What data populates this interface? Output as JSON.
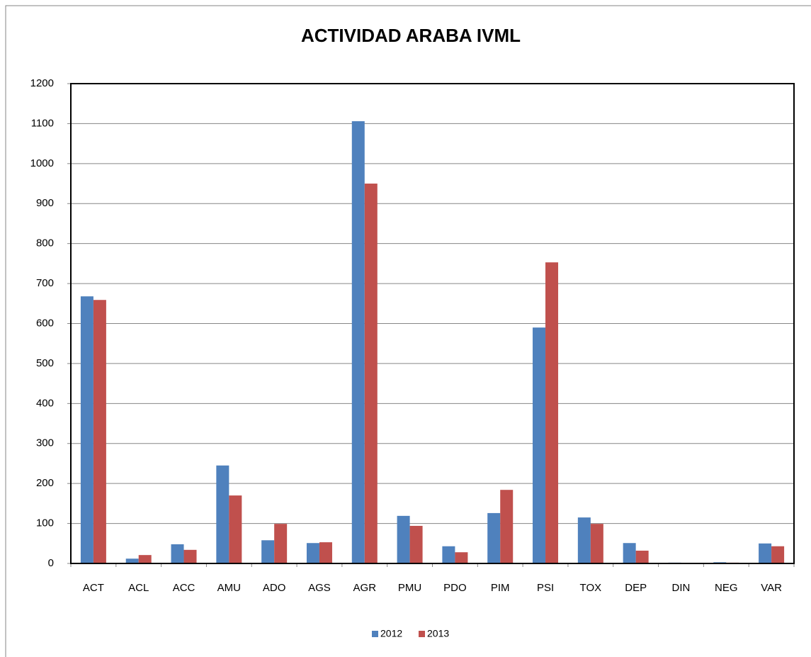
{
  "chart_data": {
    "type": "bar",
    "title": "ACTIVIDAD ARABA IVML",
    "categories": [
      "ACT",
      "ACL",
      "ACC",
      "AMU",
      "ADO",
      "AGS",
      "AGR",
      "PMU",
      "PDO",
      "PIM",
      "PSI",
      "TOX",
      "DEP",
      "DIN",
      "NEG",
      "VAR"
    ],
    "series": [
      {
        "name": "2012",
        "color": "#4f81bd",
        "values": [
          668,
          12,
          48,
          245,
          58,
          51,
          1106,
          119,
          43,
          126,
          590,
          115,
          51,
          2,
          3,
          50
        ]
      },
      {
        "name": "2013",
        "color": "#c0504d",
        "values": [
          659,
          21,
          34,
          170,
          99,
          53,
          950,
          94,
          28,
          184,
          753,
          99,
          32,
          0,
          2,
          43
        ]
      }
    ],
    "ylim": [
      0,
      1200
    ],
    "yticks": [
      0,
      100,
      200,
      300,
      400,
      500,
      600,
      700,
      800,
      900,
      1000,
      1100,
      1200
    ],
    "grid": true,
    "legend": "bottom"
  }
}
